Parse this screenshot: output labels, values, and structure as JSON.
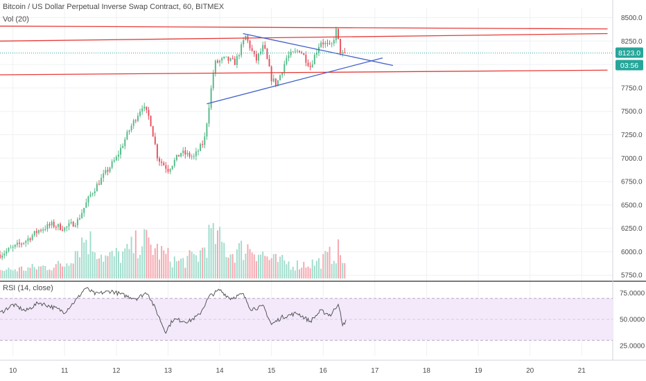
{
  "header": {
    "title": "Bitcoin / US Dollar Perpetual Inverse Swap Contract, 60, BITMEX",
    "volume_label": "Vol (20)",
    "rsi_label": "RSI (14, close)"
  },
  "price_badges": {
    "last_price": "8123.0",
    "countdown": "03:56"
  },
  "colors": {
    "up": "#53b987",
    "down": "#eb4d5c",
    "vol_up": "#9fdccb",
    "vol_down": "#f5a6ae",
    "trend_red": "#e53935",
    "trend_blue": "#3f5fc7",
    "rsi_fill": "#f3e9fb",
    "rsi_line": "#555555",
    "badge": "#26a69a"
  },
  "chart_data": [
    {
      "type": "candlestick",
      "x_tick_labels": [
        "10",
        "11",
        "12",
        "13",
        "14",
        "15",
        "16",
        "17",
        "18",
        "19",
        "20",
        "21"
      ],
      "y_tick_labels": [
        "8500.0",
        "8250.0",
        "8000.0",
        "7750.0",
        "7500.0",
        "7250.0",
        "7000.0",
        "6750.0",
        "6500.0",
        "6250.0",
        "6000.0",
        "5750.0"
      ],
      "ylim": [
        5700,
        8600
      ],
      "last_price": 8123,
      "trendlines": [
        {
          "color": "red",
          "from": [
            9.75,
            8410
          ],
          "to": [
            21.5,
            8380
          ]
        },
        {
          "color": "red",
          "from": [
            9.75,
            8250
          ],
          "to": [
            21.5,
            8330
          ]
        },
        {
          "color": "red",
          "from": [
            9.75,
            7890
          ],
          "to": [
            21.5,
            7940
          ]
        },
        {
          "color": "blue",
          "from": [
            14.45,
            8330
          ],
          "to": [
            17.35,
            7990
          ]
        },
        {
          "color": "blue",
          "from": [
            13.75,
            7580
          ],
          "to": [
            17.15,
            8070
          ]
        }
      ],
      "ohlc_anchors": [
        {
          "x": 9.75,
          "price": 5970
        },
        {
          "x": 10.0,
          "price": 6040
        },
        {
          "x": 10.25,
          "price": 6120
        },
        {
          "x": 10.5,
          "price": 6230
        },
        {
          "x": 10.75,
          "price": 6290
        },
        {
          "x": 11.0,
          "price": 6250
        },
        {
          "x": 11.25,
          "price": 6330
        },
        {
          "x": 11.5,
          "price": 6610
        },
        {
          "x": 11.75,
          "price": 6810
        },
        {
          "x": 12.0,
          "price": 7000
        },
        {
          "x": 12.25,
          "price": 7300
        },
        {
          "x": 12.5,
          "price": 7560
        },
        {
          "x": 12.65,
          "price": 7420
        },
        {
          "x": 12.8,
          "price": 7000
        },
        {
          "x": 13.0,
          "price": 6880
        },
        {
          "x": 13.25,
          "price": 7060
        },
        {
          "x": 13.5,
          "price": 7010
        },
        {
          "x": 13.7,
          "price": 7180
        },
        {
          "x": 13.8,
          "price": 7600
        },
        {
          "x": 13.9,
          "price": 8010
        },
        {
          "x": 14.1,
          "price": 8060
        },
        {
          "x": 14.3,
          "price": 8020
        },
        {
          "x": 14.5,
          "price": 8300
        },
        {
          "x": 14.7,
          "price": 8040
        },
        {
          "x": 14.85,
          "price": 8200
        },
        {
          "x": 15.0,
          "price": 7850
        },
        {
          "x": 15.1,
          "price": 7790
        },
        {
          "x": 15.3,
          "price": 8080
        },
        {
          "x": 15.55,
          "price": 8160
        },
        {
          "x": 15.75,
          "price": 7980
        },
        {
          "x": 15.95,
          "price": 8250
        },
        {
          "x": 16.15,
          "price": 8180
        },
        {
          "x": 16.25,
          "price": 8360
        },
        {
          "x": 16.35,
          "price": 8100
        },
        {
          "x": 16.45,
          "price": 8123
        }
      ]
    },
    {
      "type": "bar",
      "name": "Vol (20)",
      "note": "Relative volume profile across the same time axis",
      "anchors": [
        {
          "x": 9.75,
          "value": 0.18
        },
        {
          "x": 10.3,
          "value": 0.22
        },
        {
          "x": 11.0,
          "value": 0.3
        },
        {
          "x": 11.4,
          "value": 0.9
        },
        {
          "x": 11.8,
          "value": 0.45
        },
        {
          "x": 12.2,
          "value": 0.55
        },
        {
          "x": 12.5,
          "value": 0.85
        },
        {
          "x": 12.8,
          "value": 0.6
        },
        {
          "x": 13.2,
          "value": 0.35
        },
        {
          "x": 13.6,
          "value": 0.5
        },
        {
          "x": 13.85,
          "value": 1.0
        },
        {
          "x": 14.2,
          "value": 0.55
        },
        {
          "x": 14.6,
          "value": 0.7
        },
        {
          "x": 15.0,
          "value": 0.4
        },
        {
          "x": 15.5,
          "value": 0.3
        },
        {
          "x": 15.9,
          "value": 0.35
        },
        {
          "x": 16.3,
          "value": 0.6
        },
        {
          "x": 16.45,
          "value": 0.25
        }
      ]
    },
    {
      "type": "line",
      "name": "RSI (14, close)",
      "y_tick_labels": [
        "75.0000",
        "50.0000",
        "25.0000"
      ],
      "ylim": [
        15,
        85
      ],
      "band": [
        30,
        70
      ],
      "points": [
        {
          "x": 9.75,
          "y": 56
        },
        {
          "x": 10.0,
          "y": 64
        },
        {
          "x": 10.25,
          "y": 58
        },
        {
          "x": 10.5,
          "y": 66
        },
        {
          "x": 10.75,
          "y": 62
        },
        {
          "x": 11.0,
          "y": 57
        },
        {
          "x": 11.25,
          "y": 70
        },
        {
          "x": 11.4,
          "y": 80
        },
        {
          "x": 11.6,
          "y": 74
        },
        {
          "x": 11.9,
          "y": 77
        },
        {
          "x": 12.2,
          "y": 72
        },
        {
          "x": 12.4,
          "y": 70
        },
        {
          "x": 12.6,
          "y": 76
        },
        {
          "x": 12.8,
          "y": 55
        },
        {
          "x": 12.95,
          "y": 38
        },
        {
          "x": 13.1,
          "y": 50
        },
        {
          "x": 13.4,
          "y": 48
        },
        {
          "x": 13.6,
          "y": 54
        },
        {
          "x": 13.8,
          "y": 72
        },
        {
          "x": 14.0,
          "y": 78
        },
        {
          "x": 14.2,
          "y": 70
        },
        {
          "x": 14.45,
          "y": 74
        },
        {
          "x": 14.6,
          "y": 60
        },
        {
          "x": 14.85,
          "y": 62
        },
        {
          "x": 15.0,
          "y": 45
        },
        {
          "x": 15.2,
          "y": 52
        },
        {
          "x": 15.5,
          "y": 56
        },
        {
          "x": 15.75,
          "y": 48
        },
        {
          "x": 15.95,
          "y": 58
        },
        {
          "x": 16.15,
          "y": 54
        },
        {
          "x": 16.3,
          "y": 66
        },
        {
          "x": 16.37,
          "y": 43
        },
        {
          "x": 16.45,
          "y": 50
        }
      ]
    }
  ]
}
